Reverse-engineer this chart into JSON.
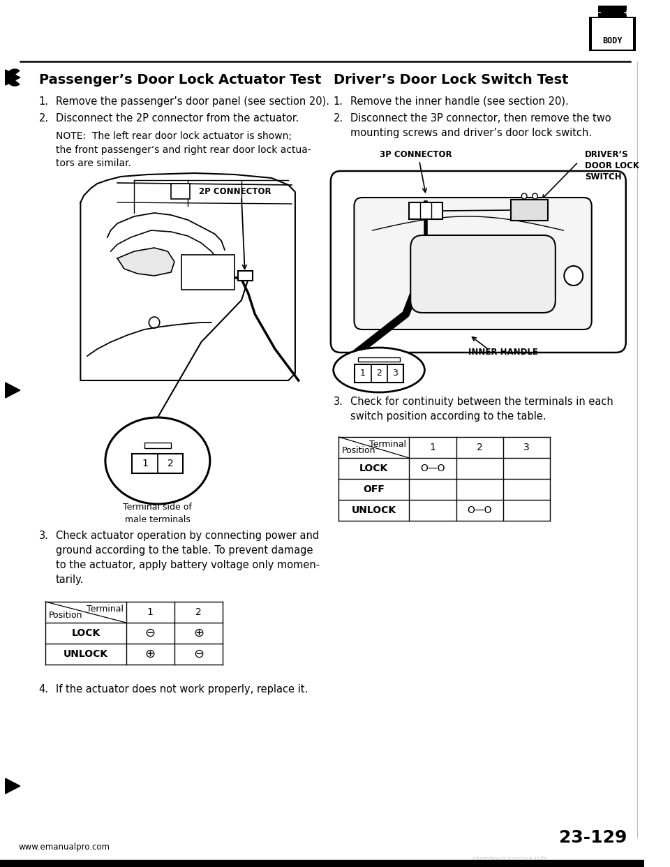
{
  "bg_color": "#ffffff",
  "page_number": "23-129",
  "website": "www.emanualpro.com",
  "watermark": "carmanualsonline.info",
  "left_title": "Passenger’s Door Lock Actuator Test",
  "left_step1": "Remove the passenger’s door panel (see section 20).",
  "left_step2": "Disconnect the 2P connector from the actuator.",
  "left_note": "NOTE:  The left rear door lock actuator is shown;\nthe front passenger’s and right rear door lock actua-\ntors are similar.",
  "left_step3_text": "Check actuator operation by connecting power and\nground according to the table. To prevent damage\nto the actuator, apply battery voltage only momen-\ntarily.",
  "left_step4": "If the actuator does not work properly, replace it.",
  "connector_label_2p": "2P CONNECTOR",
  "terminal_side_label": "Terminal side of\nmale terminals",
  "left_table_col1_header": "Terminal",
  "left_table_col2_header": "Position",
  "left_table_cols": [
    "1",
    "2"
  ],
  "left_table_rows": [
    [
      "LOCK",
      "⊖",
      "⊕"
    ],
    [
      "UNLOCK",
      "⊕",
      "⊖"
    ]
  ],
  "right_title": "Driver’s Door Lock Switch Test",
  "right_step1": "Remove the inner handle (see section 20).",
  "right_step2": "Disconnect the 3P connector, then remove the two\nmounting screws and driver’s door lock switch.",
  "right_step3": "Check for continuity between the terminals in each\nswitch position according to the table.",
  "right_connector_label": "3P CONNECTOR",
  "right_switch_label": "DRIVER’S\nDOOR LOCK\nSWITCH",
  "right_handle_label": "INNER HANDLE",
  "right_table_cols": [
    "1",
    "2",
    "3"
  ],
  "right_table_rows": [
    [
      "LOCK",
      "O—O",
      "",
      ""
    ],
    [
      "OFF",
      "",
      "",
      ""
    ],
    [
      "UNLOCK",
      "",
      "O—O",
      ""
    ]
  ]
}
